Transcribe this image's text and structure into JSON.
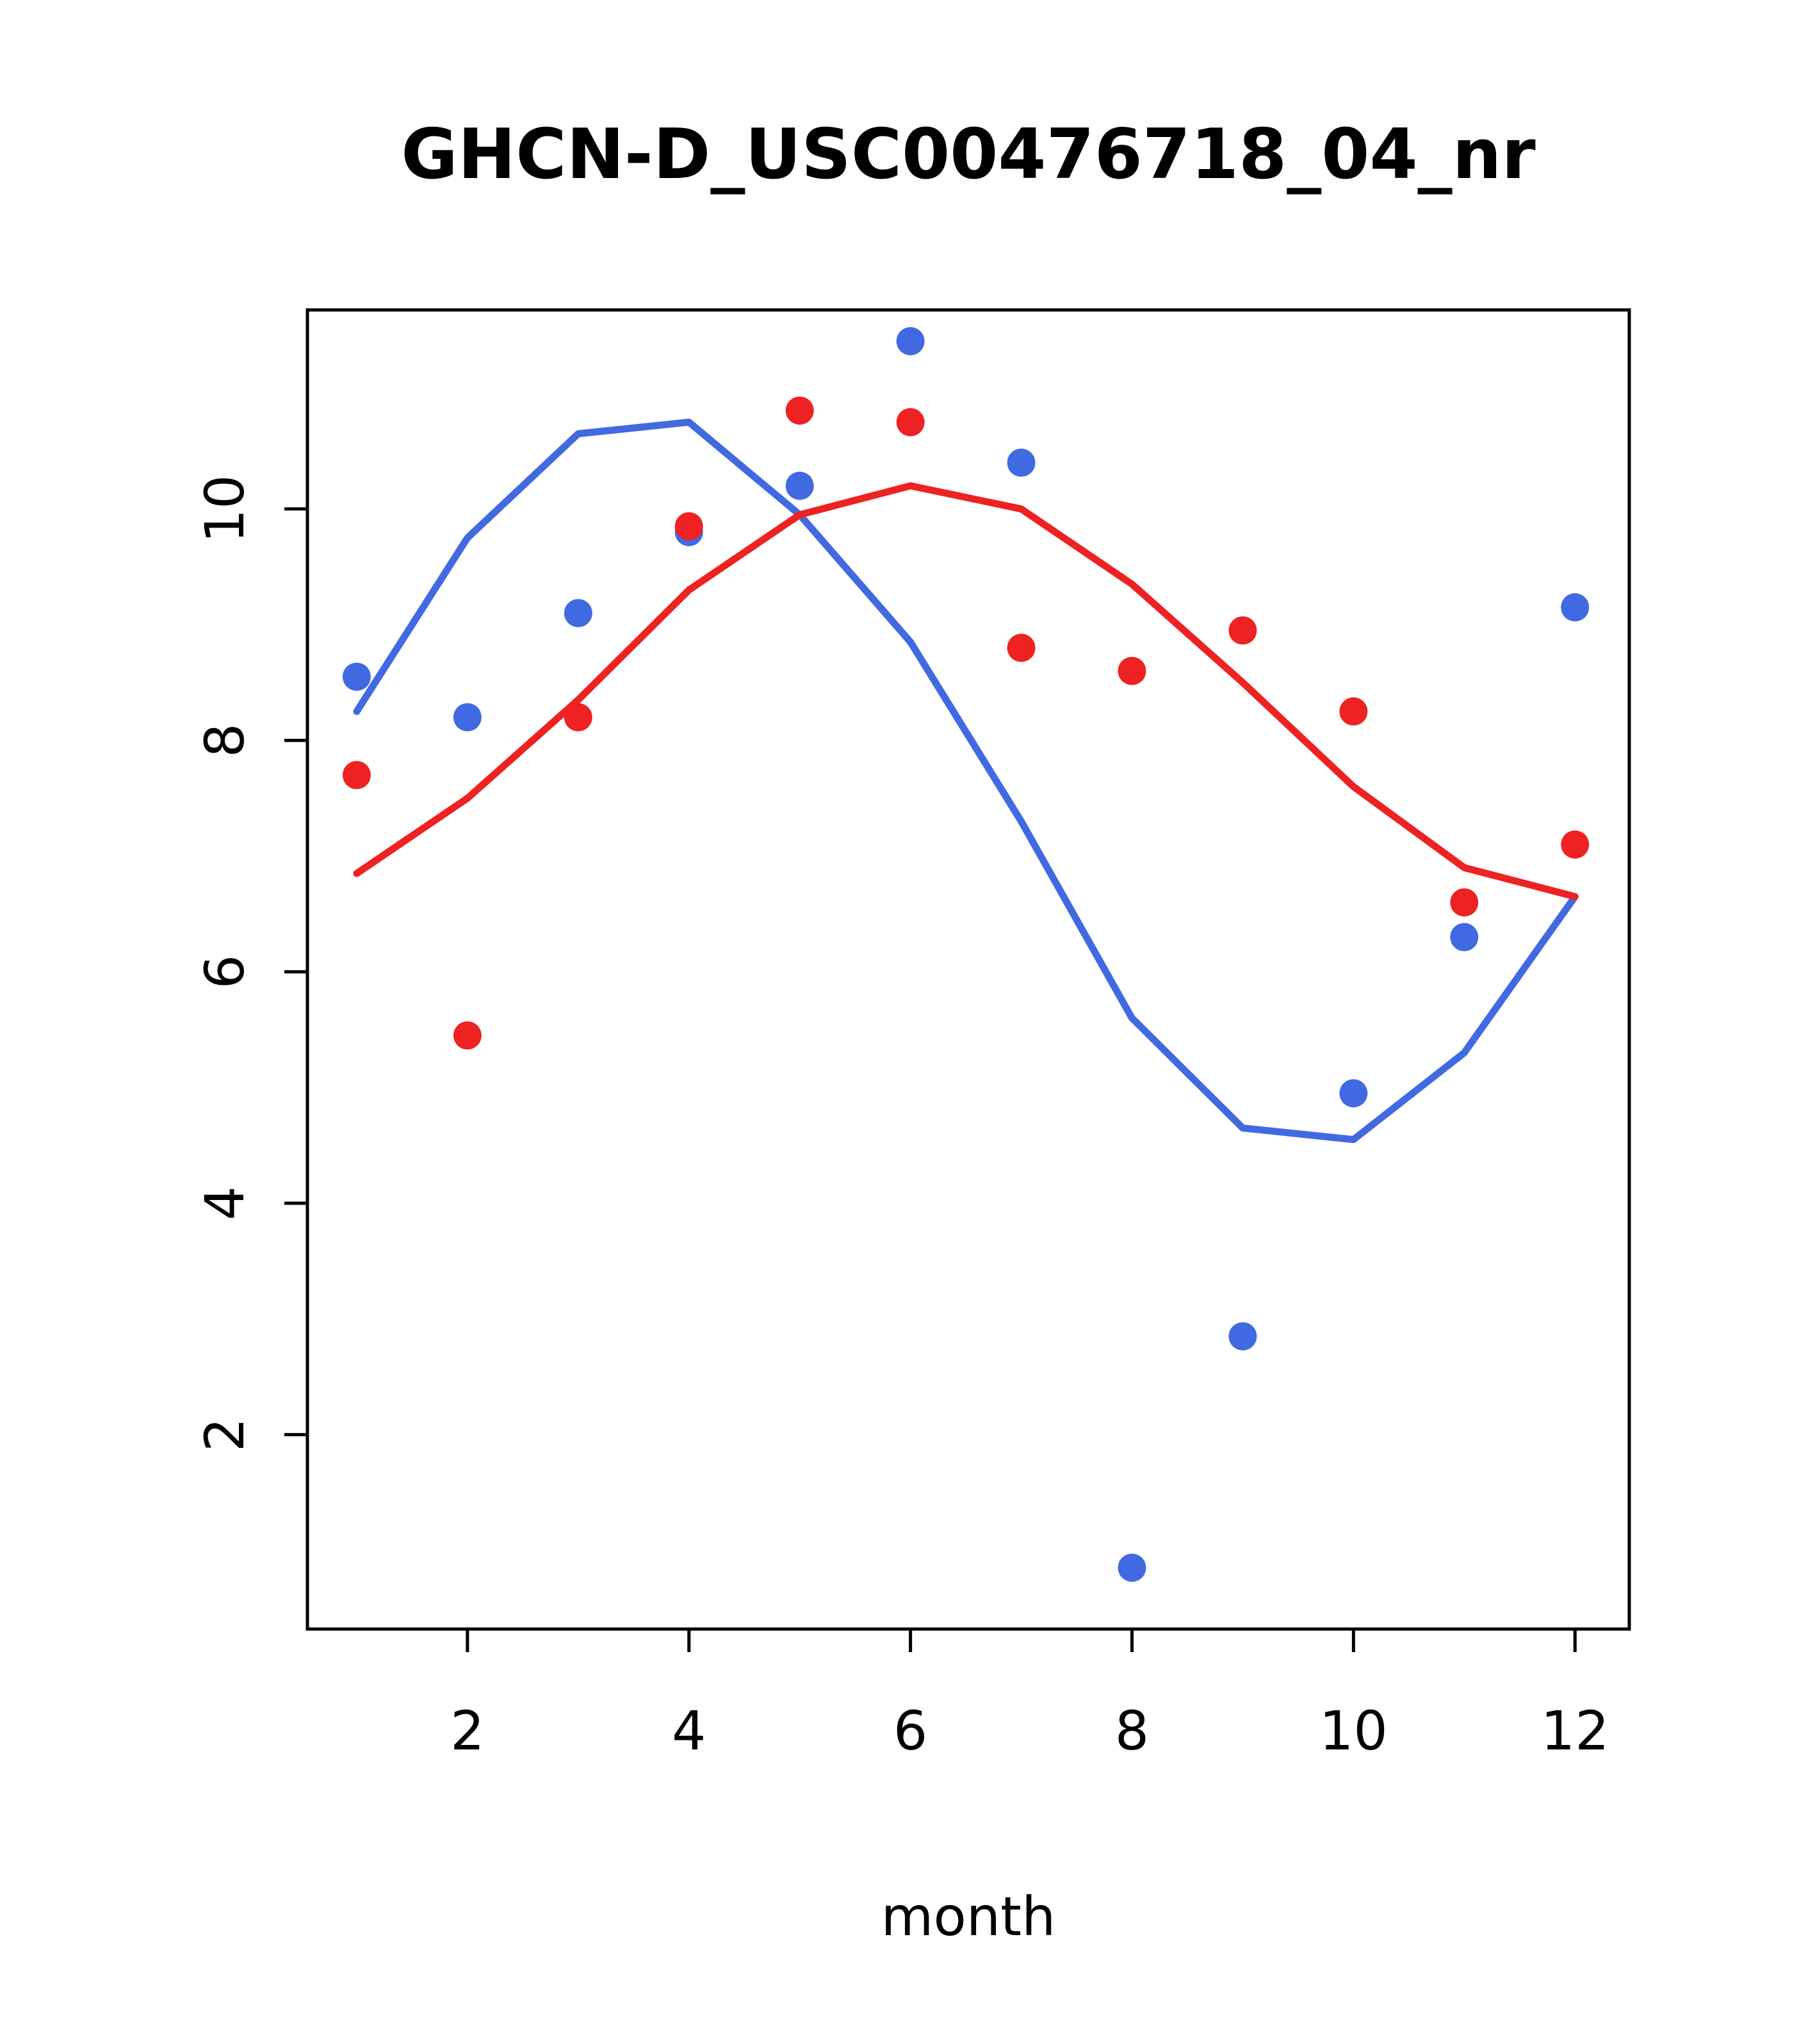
{
  "chart_data": {
    "type": "scatter",
    "title": "GHCN-D_USC00476718_04_nr",
    "xlabel": "month",
    "ylabel": "",
    "grid": false,
    "legend": null,
    "xlim": [
      0.555,
      12.49
    ],
    "ylim": [
      0.32,
      11.72
    ],
    "xticks": [
      2,
      4,
      6,
      8,
      10,
      12
    ],
    "yticks": [
      2,
      4,
      6,
      8,
      10
    ],
    "x": [
      1,
      2,
      3,
      4,
      5,
      6,
      7,
      8,
      9,
      10,
      11,
      12
    ],
    "colors": {
      "blue": "#4169E1",
      "red": "#EE2222"
    },
    "series": [
      {
        "name": "blue-trend-line",
        "kind": "line",
        "color": "#4169E1",
        "values": [
          8.25,
          9.75,
          10.65,
          10.75,
          9.95,
          8.85,
          7.3,
          5.6,
          4.65,
          4.55,
          5.3,
          6.65
        ]
      },
      {
        "name": "red-trend-line",
        "kind": "line",
        "color": "#EE2222",
        "values": [
          6.85,
          7.5,
          8.35,
          9.3,
          9.95,
          10.2,
          10.0,
          9.35,
          8.5,
          7.6,
          6.9,
          6.65
        ]
      },
      {
        "name": "blue-points",
        "kind": "points",
        "color": "#4169E1",
        "values": [
          8.55,
          8.2,
          9.1,
          9.8,
          10.2,
          11.45,
          10.4,
          0.85,
          2.85,
          4.95,
          6.3,
          9.15
        ]
      },
      {
        "name": "red-points",
        "kind": "points",
        "color": "#EE2222",
        "values": [
          7.7,
          5.45,
          8.2,
          9.85,
          10.85,
          10.75,
          8.8,
          8.6,
          8.95,
          8.25,
          6.6,
          7.1
        ]
      }
    ]
  }
}
